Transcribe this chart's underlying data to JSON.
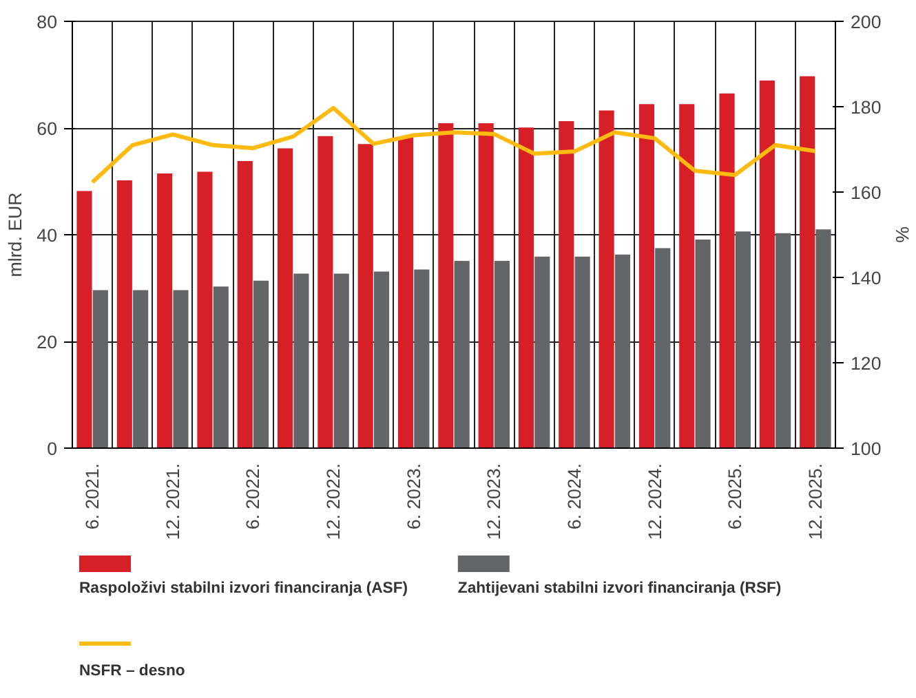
{
  "chart_data": {
    "type": "bar",
    "ylabel": "mlrd. EUR",
    "y2label": "%",
    "categories": [
      "6. 2021.",
      null,
      "12. 2021.",
      null,
      "6. 2022.",
      null,
      "12. 2022.",
      null,
      "6. 2023.",
      null,
      "12. 2023.",
      null,
      "6. 2024.",
      null,
      "12. 2024.",
      null,
      "6. 2025.",
      null,
      "12. 2025."
    ],
    "series": [
      {
        "name": "Raspoloživi stabilni izvori financiranja (ASF)",
        "color": "#d71f27",
        "values": [
          48.2,
          50.2,
          51.5,
          51.8,
          53.8,
          56.2,
          58.5,
          57.0,
          58.3,
          60.9,
          60.9,
          60.1,
          61.3,
          63.3,
          64.5,
          64.5,
          66.5,
          68.9,
          69.7
        ]
      },
      {
        "name": "Zahtijevani stabilni izvori financiranja (RSF)",
        "color": "#636569",
        "values": [
          29.6,
          29.6,
          29.6,
          30.3,
          31.4,
          32.7,
          32.7,
          33.1,
          33.5,
          35.1,
          35.1,
          35.9,
          35.9,
          36.3,
          37.5,
          39.1,
          40.6,
          40.3,
          41.0
        ]
      },
      {
        "name": "NSFR – desno",
        "type": "line",
        "axis": "y2",
        "color": "#fdbb11",
        "values": [
          162.3,
          171.0,
          173.5,
          171.0,
          170.3,
          173.0,
          179.7,
          171.3,
          173.3,
          174.0,
          173.6,
          169.0,
          169.5,
          174.0,
          172.6,
          165.0,
          164.0,
          171.0,
          169.6
        ]
      }
    ],
    "ylim": [
      0,
      80
    ],
    "yticks": [
      0,
      20,
      40,
      60,
      80
    ],
    "y2lim": [
      100,
      200
    ],
    "y2ticks": [
      100,
      120,
      140,
      160,
      180,
      200
    ],
    "grid": true,
    "legend": "bottom"
  }
}
